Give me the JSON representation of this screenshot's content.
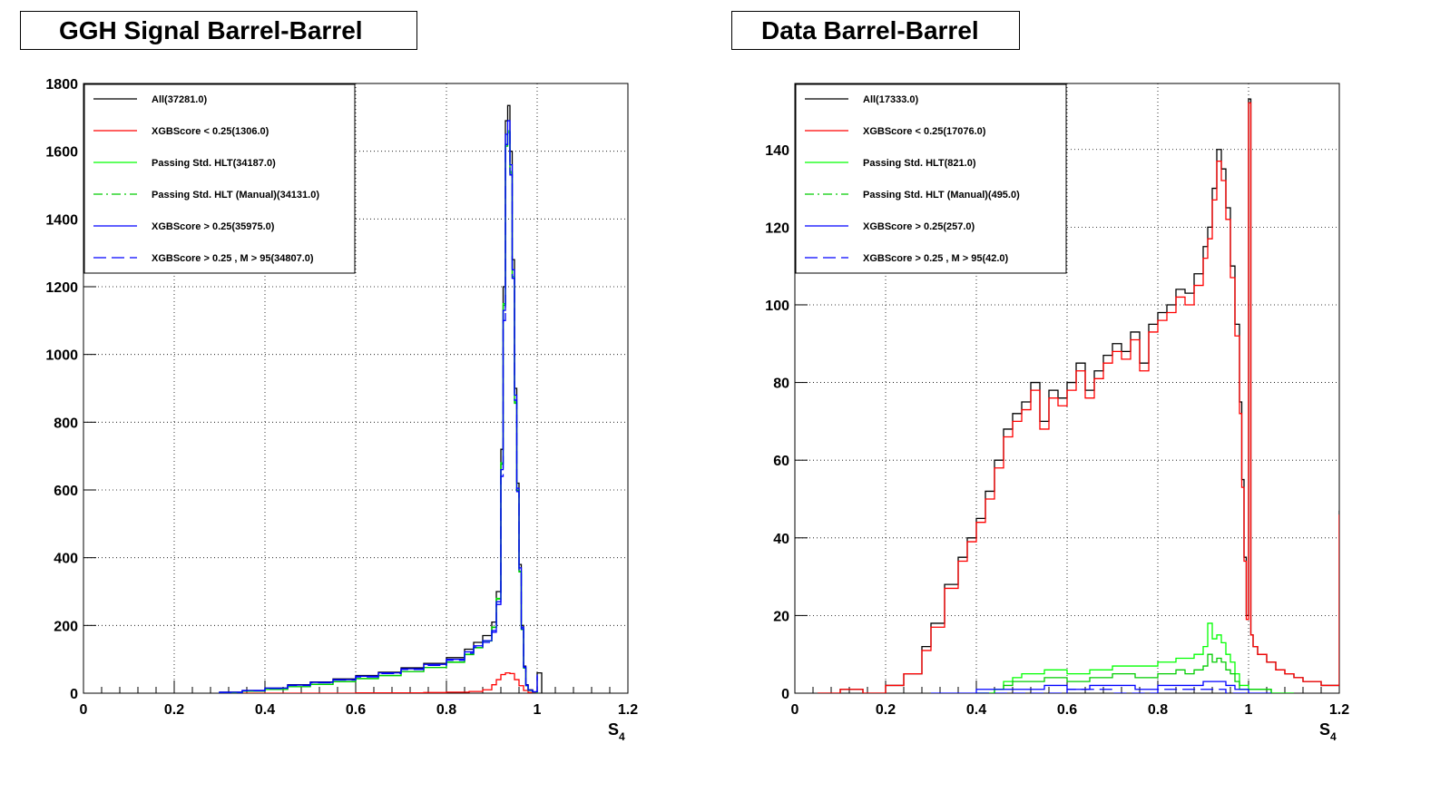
{
  "chart_data": [
    {
      "type": "line",
      "title": "GGH Signal Barrel-Barrel",
      "xlabel": "S",
      "xlabel_sub": "4",
      "ylabel": "",
      "xlim": [
        0,
        1.2
      ],
      "ylim": [
        0,
        1800
      ],
      "grid": true,
      "legend_position": "top-left",
      "x_ticks": [
        "0",
        "0.2",
        "0.4",
        "0.6",
        "0.8",
        "1",
        "1.2"
      ],
      "y_ticks": [
        "0",
        "200",
        "400",
        "600",
        "800",
        "1000",
        "1200",
        "1400",
        "1600",
        "1800"
      ],
      "legend": [
        {
          "label": "All(37281.0)",
          "color": "#000000",
          "dash": "solid"
        },
        {
          "label": "XGBScore < 0.25(1306.0)",
          "color": "#ff0000",
          "dash": "solid"
        },
        {
          "label": "Passing Std. HLT(34187.0)",
          "color": "#00ff00",
          "dash": "solid"
        },
        {
          "label": "Passing Std. HLT (Manual)(34131.0)",
          "color": "#00cc00",
          "dash": "dashdot"
        },
        {
          "label": "XGBScore > 0.25(35975.0)",
          "color": "#0000ff",
          "dash": "solid"
        },
        {
          "label": "XGBScore > 0.25 , M > 95(34807.0)",
          "color": "#0000ff",
          "dash": "dashed"
        }
      ],
      "series": [
        {
          "color": "#000000",
          "x": [
            0.3,
            0.35,
            0.4,
            0.45,
            0.5,
            0.55,
            0.6,
            0.65,
            0.7,
            0.75,
            0.8,
            0.84,
            0.86,
            0.88,
            0.9,
            0.91,
            0.92,
            0.925,
            0.93,
            0.935,
            0.94,
            0.945,
            0.95,
            0.955,
            0.96,
            0.965,
            0.97,
            0.975,
            0.98,
            0.99,
            1.0,
            1.01
          ],
          "y": [
            3,
            8,
            15,
            25,
            33,
            42,
            52,
            62,
            75,
            88,
            105,
            130,
            150,
            170,
            210,
            300,
            720,
            1200,
            1690,
            1735,
            1600,
            1280,
            900,
            620,
            380,
            200,
            80,
            25,
            10,
            4,
            60,
            0
          ]
        },
        {
          "color": "#ff0000",
          "x": [
            0.3,
            0.5,
            0.6,
            0.7,
            0.75,
            0.8,
            0.85,
            0.88,
            0.9,
            0.91,
            0.92,
            0.93,
            0.94,
            0.95,
            0.96,
            0.97,
            0.98,
            1.0
          ],
          "y": [
            0,
            0,
            1,
            1,
            2,
            3,
            5,
            10,
            25,
            40,
            55,
            60,
            58,
            40,
            22,
            8,
            2,
            0
          ]
        },
        {
          "color": "#00ff00",
          "x": [
            0.3,
            0.35,
            0.4,
            0.45,
            0.5,
            0.55,
            0.6,
            0.65,
            0.7,
            0.75,
            0.8,
            0.84,
            0.86,
            0.88,
            0.9,
            0.91,
            0.92,
            0.925,
            0.93,
            0.935,
            0.94,
            0.945,
            0.95,
            0.955,
            0.96,
            0.965,
            0.97,
            0.975,
            0.98,
            0.99,
            1.0
          ],
          "y": [
            2,
            6,
            11,
            19,
            26,
            34,
            43,
            52,
            64,
            76,
            92,
            115,
            135,
            155,
            195,
            280,
            680,
            1150,
            1620,
            1660,
            1540,
            1230,
            860,
            600,
            360,
            190,
            75,
            22,
            8,
            3,
            0
          ]
        },
        {
          "color": "#00cc00",
          "x": [
            0.3,
            0.35,
            0.4,
            0.45,
            0.5,
            0.55,
            0.6,
            0.65,
            0.7,
            0.75,
            0.8,
            0.84,
            0.86,
            0.88,
            0.9,
            0.91,
            0.92,
            0.925,
            0.93,
            0.935,
            0.94,
            0.945,
            0.95,
            0.955,
            0.96,
            0.965,
            0.97,
            0.975,
            0.98,
            0.99,
            1.0
          ],
          "y": [
            2,
            6,
            11,
            19,
            26,
            34,
            43,
            52,
            64,
            76,
            91,
            114,
            134,
            154,
            194,
            278,
            676,
            1145,
            1615,
            1655,
            1535,
            1225,
            856,
            598,
            358,
            188,
            74,
            22,
            8,
            3,
            0
          ]
        },
        {
          "color": "#0000ff",
          "x": [
            0.3,
            0.35,
            0.4,
            0.45,
            0.5,
            0.55,
            0.6,
            0.65,
            0.7,
            0.75,
            0.8,
            0.84,
            0.86,
            0.88,
            0.9,
            0.91,
            0.92,
            0.925,
            0.93,
            0.935,
            0.94,
            0.945,
            0.95,
            0.955,
            0.96,
            0.965,
            0.97,
            0.975,
            0.98,
            0.99,
            1.0
          ],
          "y": [
            3,
            8,
            15,
            24,
            32,
            40,
            50,
            60,
            72,
            85,
            100,
            122,
            140,
            155,
            185,
            270,
            660,
            1130,
            1650,
            1690,
            1560,
            1250,
            880,
            605,
            370,
            195,
            78,
            24,
            9,
            4,
            55
          ]
        },
        {
          "color": "#0000ff",
          "dash": "dashed",
          "x": [
            0.3,
            0.35,
            0.4,
            0.45,
            0.5,
            0.55,
            0.6,
            0.65,
            0.7,
            0.75,
            0.8,
            0.84,
            0.86,
            0.88,
            0.9,
            0.91,
            0.92,
            0.925,
            0.93,
            0.935,
            0.94,
            0.945,
            0.95,
            0.955,
            0.96,
            0.965,
            0.97,
            0.975,
            0.98,
            0.99,
            1.0
          ],
          "y": [
            2,
            7,
            14,
            23,
            31,
            39,
            48,
            58,
            70,
            82,
            97,
            118,
            136,
            150,
            180,
            262,
            640,
            1100,
            1620,
            1660,
            1530,
            1225,
            865,
            595,
            362,
            190,
            76,
            23,
            9,
            4,
            50
          ]
        }
      ]
    },
    {
      "type": "line",
      "title": "Data Barrel-Barrel",
      "xlabel": "S",
      "xlabel_sub": "4",
      "ylabel": "",
      "xlim": [
        0,
        1.2
      ],
      "ylim": [
        0,
        157
      ],
      "grid": true,
      "legend_position": "top-left",
      "x_ticks": [
        "0",
        "0.2",
        "0.4",
        "0.6",
        "0.8",
        "1",
        "1.2"
      ],
      "y_ticks": [
        "0",
        "20",
        "40",
        "60",
        "80",
        "100",
        "120",
        "140"
      ],
      "legend": [
        {
          "label": "All(17333.0)",
          "color": "#000000",
          "dash": "solid"
        },
        {
          "label": "XGBScore < 0.25(17076.0)",
          "color": "#ff0000",
          "dash": "solid"
        },
        {
          "label": "Passing Std. HLT(821.0)",
          "color": "#00ff00",
          "dash": "solid"
        },
        {
          "label": "Passing Std. HLT (Manual)(495.0)",
          "color": "#00cc00",
          "dash": "dashdot"
        },
        {
          "label": "XGBScore > 0.25(257.0)",
          "color": "#0000ff",
          "dash": "solid"
        },
        {
          "label": "XGBScore > 0.25 , M > 95(42.0)",
          "color": "#0000ff",
          "dash": "dashed"
        }
      ],
      "series": [
        {
          "color": "#000000",
          "x": [
            0.05,
            0.1,
            0.15,
            0.2,
            0.24,
            0.28,
            0.3,
            0.33,
            0.36,
            0.38,
            0.4,
            0.42,
            0.44,
            0.46,
            0.48,
            0.5,
            0.52,
            0.54,
            0.56,
            0.58,
            0.6,
            0.62,
            0.64,
            0.66,
            0.68,
            0.7,
            0.72,
            0.74,
            0.76,
            0.78,
            0.8,
            0.82,
            0.84,
            0.86,
            0.88,
            0.9,
            0.91,
            0.92,
            0.93,
            0.94,
            0.95,
            0.96,
            0.97,
            0.98,
            0.985,
            0.99,
            0.995,
            1.0,
            1.005,
            1.01,
            1.02,
            1.04,
            1.06,
            1.08,
            1.1,
            1.12,
            1.14,
            1.16,
            1.18,
            1.2
          ],
          "y": [
            0,
            1,
            0,
            2,
            5,
            12,
            18,
            28,
            35,
            40,
            45,
            52,
            60,
            68,
            72,
            75,
            80,
            70,
            78,
            76,
            80,
            85,
            78,
            83,
            87,
            90,
            88,
            93,
            85,
            95,
            98,
            100,
            104,
            103,
            108,
            115,
            120,
            130,
            140,
            135,
            125,
            110,
            95,
            75,
            55,
            35,
            20,
            153,
            15,
            12,
            10,
            8,
            6,
            5,
            4,
            3,
            3,
            2,
            2,
            47
          ]
        },
        {
          "color": "#ff0000",
          "x": [
            0.05,
            0.1,
            0.15,
            0.2,
            0.24,
            0.28,
            0.3,
            0.33,
            0.36,
            0.38,
            0.4,
            0.42,
            0.44,
            0.46,
            0.48,
            0.5,
            0.52,
            0.54,
            0.56,
            0.58,
            0.6,
            0.62,
            0.64,
            0.66,
            0.68,
            0.7,
            0.72,
            0.74,
            0.76,
            0.78,
            0.8,
            0.82,
            0.84,
            0.86,
            0.88,
            0.9,
            0.91,
            0.92,
            0.93,
            0.94,
            0.95,
            0.96,
            0.97,
            0.98,
            0.985,
            0.99,
            0.995,
            1.0,
            1.005,
            1.01,
            1.02,
            1.04,
            1.06,
            1.08,
            1.1,
            1.12,
            1.14,
            1.16,
            1.18,
            1.2
          ],
          "y": [
            0,
            1,
            0,
            2,
            5,
            11,
            17,
            27,
            34,
            39,
            44,
            50,
            58,
            66,
            70,
            73,
            78,
            68,
            76,
            74,
            78,
            83,
            76,
            81,
            85,
            88,
            86,
            91,
            83,
            93,
            96,
            98,
            102,
            100,
            105,
            112,
            117,
            127,
            137,
            132,
            122,
            107,
            92,
            72,
            53,
            34,
            19,
            152,
            15,
            12,
            10,
            8,
            6,
            5,
            4,
            3,
            3,
            2,
            2,
            46
          ]
        },
        {
          "color": "#00ff00",
          "x": [
            0.4,
            0.44,
            0.46,
            0.48,
            0.5,
            0.55,
            0.6,
            0.65,
            0.7,
            0.75,
            0.8,
            0.82,
            0.84,
            0.86,
            0.88,
            0.9,
            0.91,
            0.92,
            0.93,
            0.94,
            0.95,
            0.96,
            0.97,
            0.98,
            1.0,
            1.05,
            1.1
          ],
          "y": [
            0,
            1,
            3,
            4,
            5,
            6,
            5,
            6,
            7,
            7,
            8,
            8,
            9,
            9,
            10,
            12,
            18,
            14,
            15,
            13,
            10,
            8,
            5,
            2,
            1,
            0,
            0
          ]
        },
        {
          "color": "#00cc00",
          "x": [
            0.4,
            0.44,
            0.46,
            0.48,
            0.5,
            0.55,
            0.6,
            0.65,
            0.7,
            0.75,
            0.8,
            0.82,
            0.84,
            0.86,
            0.88,
            0.9,
            0.91,
            0.92,
            0.93,
            0.94,
            0.95,
            0.96,
            0.97,
            0.98,
            1.0,
            1.05,
            1.1
          ],
          "y": [
            0,
            1,
            2,
            3,
            3,
            4,
            3,
            4,
            5,
            4,
            5,
            5,
            6,
            5,
            6,
            7,
            10,
            8,
            9,
            8,
            6,
            5,
            3,
            1,
            1,
            0,
            0
          ]
        },
        {
          "color": "#0000ff",
          "x": [
            0.3,
            0.4,
            0.45,
            0.5,
            0.55,
            0.6,
            0.65,
            0.7,
            0.75,
            0.8,
            0.85,
            0.9,
            0.93,
            0.95,
            0.97,
            1.0,
            1.05
          ],
          "y": [
            0,
            1,
            1,
            1,
            2,
            1,
            2,
            2,
            1,
            2,
            2,
            3,
            3,
            2,
            1,
            0,
            0
          ]
        },
        {
          "color": "#0000ff",
          "dash": "dashed",
          "x": [
            0.4,
            0.5,
            0.6,
            0.7,
            0.8,
            0.9,
            0.95,
            1.0
          ],
          "y": [
            0,
            0,
            1,
            0,
            1,
            1,
            0,
            0
          ]
        }
      ]
    }
  ]
}
